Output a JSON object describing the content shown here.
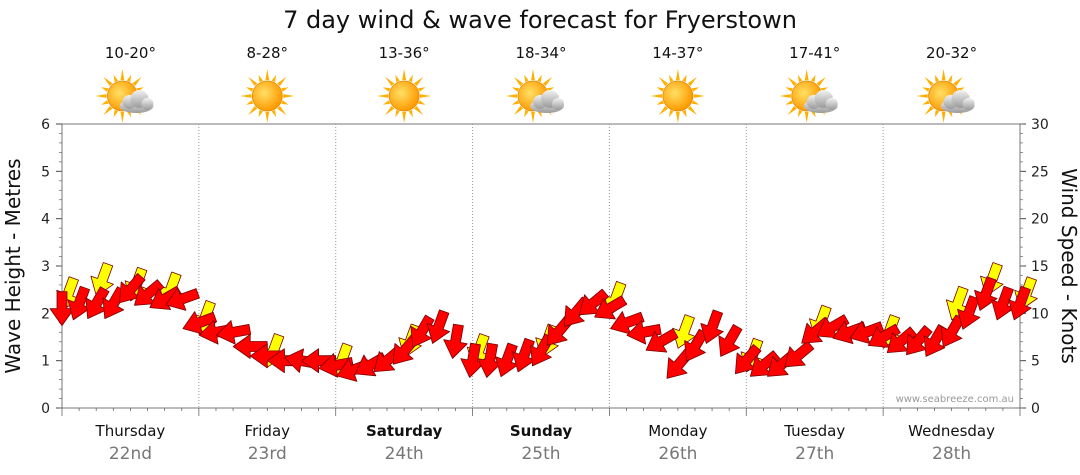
{
  "title": "7 day wind & wave forecast for Fryerstown",
  "credit": "www.seabreeze.com.au",
  "days": [
    {
      "name": "Thursday",
      "date": "22nd",
      "temp": "10-20°",
      "icon": "sun-cloud-icon",
      "bold": false
    },
    {
      "name": "Friday",
      "date": "23rd",
      "temp": "8-28°",
      "icon": "sun-icon",
      "bold": false
    },
    {
      "name": "Saturday",
      "date": "24th",
      "temp": "13-36°",
      "icon": "sun-icon",
      "bold": true
    },
    {
      "name": "Sunday",
      "date": "25th",
      "temp": "18-34°",
      "icon": "sun-cloud-icon",
      "bold": true
    },
    {
      "name": "Monday",
      "date": "26th",
      "temp": "14-37°",
      "icon": "sun-icon",
      "bold": false
    },
    {
      "name": "Tuesday",
      "date": "27th",
      "temp": "17-41°",
      "icon": "sun-cloud-icon",
      "bold": false
    },
    {
      "name": "Wednesday",
      "date": "28th",
      "temp": "20-32°",
      "icon": "sun-cloud-icon",
      "bold": false
    }
  ],
  "colors": {
    "wind": "#ff0000",
    "gust": "#ffff00",
    "outline": "#7a0000",
    "sun": "#ffb000",
    "grid": "#999999"
  },
  "chart_data": {
    "type": "line",
    "title": "7 day wind & wave forecast for Fryerstown",
    "ylabel_left": "Wave Height - Metres",
    "ylabel_right": "Wind Speed - Knots",
    "ylim_left": [
      0,
      6
    ],
    "ylim_right": [
      0,
      30
    ],
    "yticks_left": [
      0,
      1,
      2,
      3,
      4,
      5,
      6
    ],
    "yticks_right": [
      0,
      5,
      10,
      15,
      20,
      25,
      30
    ],
    "grid": true,
    "x_unit": "hours from start of Thursday 22nd",
    "x_range": [
      0,
      168
    ],
    "series": [
      {
        "name": "Wind Speed",
        "axis": "right",
        "x": [
          0,
          3,
          6,
          9,
          12,
          15,
          18,
          21,
          24,
          27,
          30,
          33,
          36,
          39,
          42,
          45,
          48,
          51,
          54,
          57,
          60,
          63,
          66,
          69,
          72,
          75,
          78,
          81,
          84,
          87,
          90,
          93,
          96,
          99,
          102,
          105,
          108,
          111,
          114,
          117,
          120,
          123,
          126,
          129,
          132,
          135,
          138,
          141,
          144,
          147,
          150,
          153,
          156,
          159,
          162,
          165,
          168
        ],
        "values": [
          10.5,
          11,
          11,
          11,
          12.5,
          12,
          11.5,
          11.5,
          9,
          8,
          8,
          6.5,
          5.5,
          5,
          5,
          5,
          4.5,
          4,
          4.5,
          5,
          6,
          8,
          8.5,
          7,
          5,
          5,
          5,
          5.5,
          6,
          8,
          10,
          11,
          10.5,
          9,
          8,
          7,
          4.5,
          6.5,
          8.5,
          7,
          5,
          4.5,
          4.5,
          5.5,
          8,
          8.5,
          8,
          8,
          7.5,
          7,
          7,
          7,
          8,
          10,
          12,
          11,
          11
        ],
        "direction": [
          180,
          200,
          210,
          210,
          220,
          230,
          240,
          250,
          250,
          260,
          260,
          270,
          270,
          270,
          280,
          270,
          260,
          250,
          240,
          230,
          220,
          210,
          200,
          190,
          190,
          190,
          200,
          200,
          210,
          220,
          220,
          230,
          240,
          250,
          260,
          240,
          220,
          210,
          200,
          210,
          220,
          230,
          230,
          230,
          230,
          240,
          250,
          250,
          240,
          230,
          220,
          210,
          210,
          200,
          200,
          200,
          200
        ]
      },
      {
        "name": "Wind Gust",
        "axis": "right",
        "x": [
          0,
          6,
          12,
          18,
          24,
          36,
          48,
          60,
          72,
          84,
          96,
          108,
          120,
          132,
          144,
          156,
          162,
          168
        ],
        "values": [
          12,
          13.5,
          13,
          12.5,
          9.5,
          6,
          5,
          7,
          6,
          7,
          11.5,
          8,
          5.5,
          9,
          8,
          11,
          13.5,
          12
        ]
      }
    ]
  }
}
